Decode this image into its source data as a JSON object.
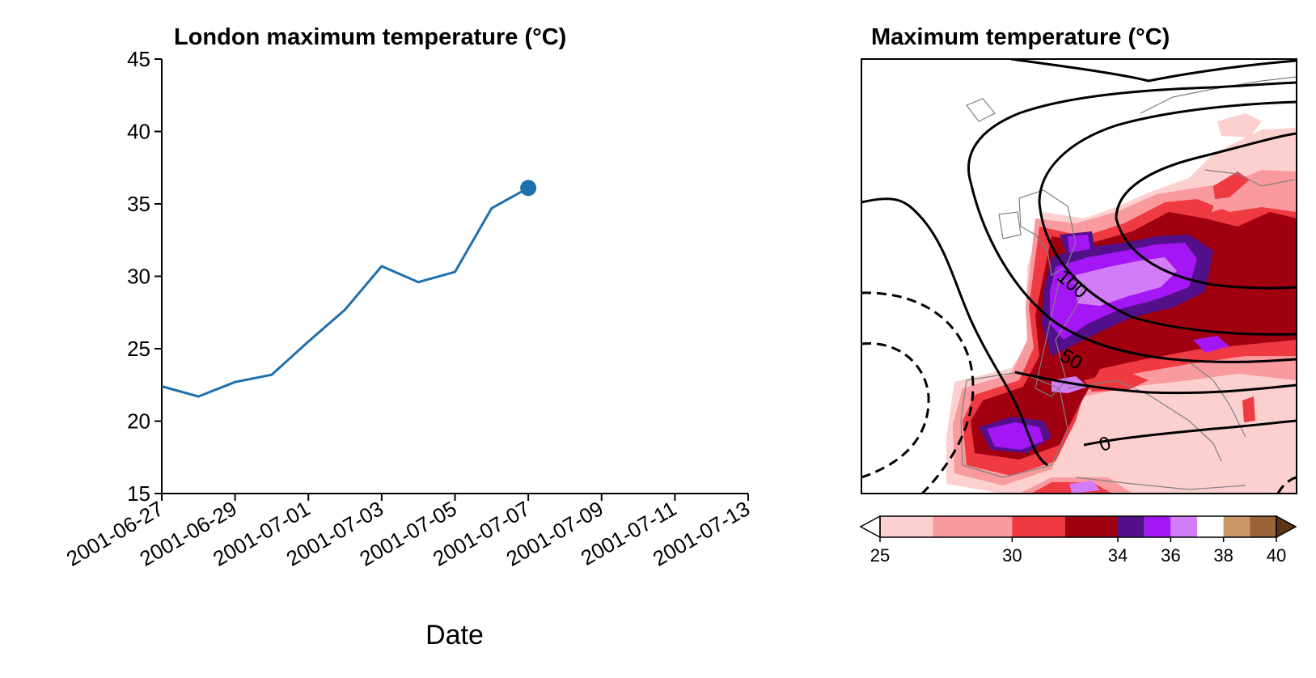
{
  "chart_data": [
    {
      "type": "line",
      "title": "London maximum temperature (°C)",
      "xlabel": "Date",
      "ylabel": "",
      "ylim": [
        15,
        45
      ],
      "xlim": [
        "2001-06-27",
        "2001-07-13"
      ],
      "yticks": [
        "15",
        "20",
        "25",
        "30",
        "35",
        "40",
        "45"
      ],
      "xticks": [
        "2001-06-27",
        "2001-06-29",
        "2001-07-01",
        "2001-07-03",
        "2001-07-05",
        "2001-07-07",
        "2001-07-09",
        "2001-07-11",
        "2001-07-13"
      ],
      "series": [
        {
          "color": "#1f6fad",
          "x": [
            "2001-06-27",
            "2001-06-28",
            "2001-06-29",
            "2001-06-30",
            "2001-07-01",
            "2001-07-02",
            "2001-07-03",
            "2001-07-04",
            "2001-07-05",
            "2001-07-06",
            "2001-07-07"
          ],
          "values": [
            22.4,
            21.7,
            22.7,
            23.2,
            25.5,
            27.7,
            30.7,
            29.6,
            30.3,
            34.7,
            36.1
          ]
        }
      ],
      "highlight_point": {
        "x": "2001-07-07",
        "y": 36.1
      },
      "grid": false
    },
    {
      "type": "heatmap",
      "title": "Maximum temperature (°C)",
      "description_free": true,
      "colorbar": {
        "ticks": [
          "25",
          "30",
          "34",
          "36",
          "38",
          "40"
        ],
        "levels": [
          25,
          27,
          30,
          32,
          34,
          35,
          36,
          37,
          38,
          39,
          40
        ],
        "colors": [
          "#fdd0d0",
          "#f99a9e",
          "#ef3a42",
          "#a00010",
          "#52118a",
          "#a516f5",
          "#d27cf7",
          "#ffffff",
          "#c99668",
          "#9a6436",
          "#5c3514"
        ],
        "extend": "both"
      },
      "contour_labels": [
        "100",
        "50",
        "0"
      ],
      "grid": false
    }
  ]
}
